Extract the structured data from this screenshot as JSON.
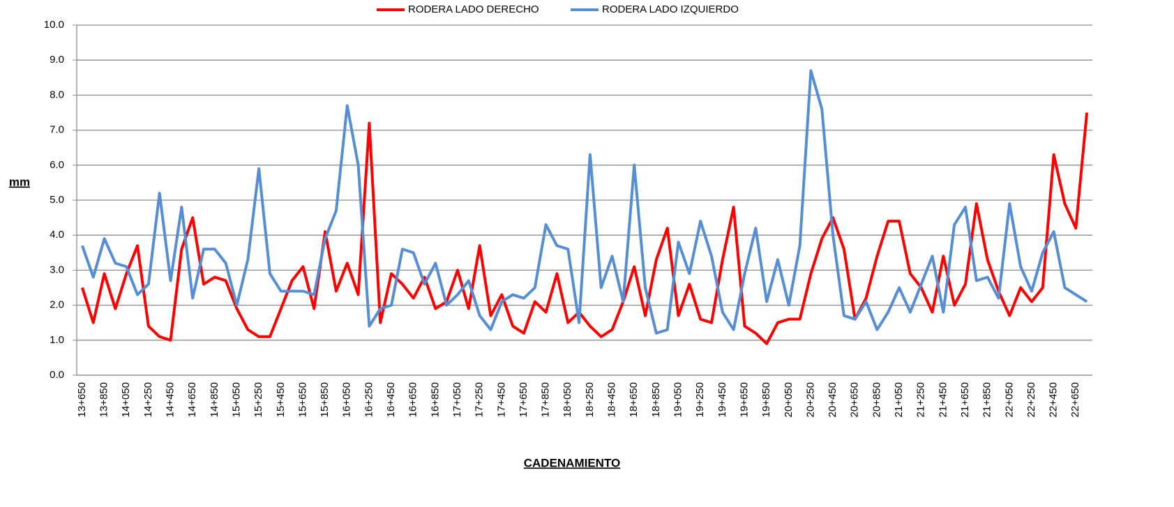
{
  "chart_data": {
    "type": "line",
    "x_label": "CADENAMIENTO",
    "y_label": "mm",
    "categories": [
      "13+650",
      null,
      "13+850",
      null,
      "14+050",
      null,
      "14+250",
      null,
      "14+450",
      null,
      "14+650",
      null,
      "14+850",
      null,
      "15+050",
      null,
      "15+250",
      null,
      "15+450",
      null,
      "15+650",
      null,
      "15+850",
      null,
      "16+050",
      null,
      "16+250",
      null,
      "16+450",
      null,
      "16+650",
      null,
      "16+850",
      null,
      "17+050",
      null,
      "17+250",
      null,
      "17+450",
      null,
      "17+650",
      null,
      "17+850",
      null,
      "18+050",
      null,
      "18+250",
      null,
      "18+450",
      null,
      "18+650",
      null,
      "18+850",
      null,
      "19+050",
      null,
      "19+250",
      null,
      "19+450",
      null,
      "19+650",
      null,
      "19+850",
      null,
      "20+050",
      null,
      "20+250",
      null,
      "20+450",
      null,
      "20+650",
      null,
      "20+850",
      null,
      "21+050",
      null,
      "21+250",
      null,
      "21+450",
      null,
      "21+650",
      null,
      "21+850",
      null,
      "22+050",
      null,
      "22+250",
      null,
      "22+450",
      null,
      "22+650",
      null
    ],
    "series": [
      {
        "name": "RODERA LADO DERECHO",
        "color": "#ff0000",
        "values": [
          2.5,
          1.5,
          2.9,
          1.9,
          2.9,
          3.7,
          1.4,
          1.1,
          1.0,
          3.6,
          4.5,
          2.6,
          2.8,
          2.7,
          1.9,
          1.3,
          1.1,
          1.1,
          1.9,
          2.7,
          3.1,
          1.9,
          4.1,
          2.4,
          3.2,
          2.3,
          7.2,
          1.5,
          2.9,
          2.6,
          2.2,
          2.8,
          1.9,
          2.1,
          3.0,
          1.9,
          3.7,
          1.7,
          2.3,
          1.4,
          1.2,
          2.1,
          1.8,
          2.9,
          1.5,
          1.8,
          1.4,
          1.1,
          1.3,
          2.1,
          3.1,
          1.7,
          3.3,
          4.2,
          1.7,
          2.6,
          1.6,
          1.5,
          3.3,
          4.8,
          1.4,
          1.2,
          0.9,
          1.5,
          1.6,
          1.6,
          2.9,
          3.9,
          4.5,
          3.6,
          1.6,
          2.2,
          3.4,
          4.4,
          4.4,
          2.9,
          2.5,
          1.8,
          3.4,
          2.0,
          2.6,
          4.9,
          3.3,
          2.4,
          1.7,
          2.5,
          2.1,
          2.5,
          6.3,
          4.9,
          4.2,
          7.5
        ]
      },
      {
        "name": "RODERA LADO IZQUIERDO",
        "color": "#558ed5",
        "values": [
          3.7,
          2.8,
          3.9,
          3.2,
          3.1,
          2.3,
          2.6,
          5.2,
          2.7,
          4.8,
          2.2,
          3.6,
          3.6,
          3.2,
          2.0,
          3.3,
          5.9,
          2.9,
          2.4,
          2.4,
          2.4,
          2.3,
          3.9,
          4.7,
          7.7,
          6.0,
          1.4,
          1.9,
          2.0,
          3.6,
          3.5,
          2.6,
          3.2,
          2.0,
          2.3,
          2.7,
          1.7,
          1.3,
          2.1,
          2.3,
          2.2,
          2.5,
          4.3,
          3.7,
          3.6,
          1.5,
          6.3,
          2.5,
          3.4,
          2.1,
          6.0,
          2.5,
          1.2,
          1.3,
          3.8,
          2.9,
          4.4,
          3.4,
          1.8,
          1.3,
          2.9,
          4.2,
          2.1,
          3.3,
          2.0,
          3.7,
          8.7,
          7.6,
          4.0,
          1.7,
          1.6,
          2.1,
          1.3,
          1.8,
          2.5,
          1.8,
          2.6,
          3.4,
          1.8,
          4.3,
          4.8,
          2.7,
          2.8,
          2.2,
          4.9,
          3.1,
          2.4,
          3.5,
          4.1,
          2.5,
          2.3,
          2.1
        ]
      }
    ],
    "ylim": [
      0,
      10
    ],
    "yticks": [
      {
        "value": 0,
        "label": "0.0"
      },
      {
        "value": 1,
        "label": "1.0"
      },
      {
        "value": 2,
        "label": "2.0"
      },
      {
        "value": 3,
        "label": "3.0"
      },
      {
        "value": 4,
        "label": "4.0"
      },
      {
        "value": 5,
        "label": "5.0"
      },
      {
        "value": 6,
        "label": "6.0"
      },
      {
        "value": 7,
        "label": "7.0"
      },
      {
        "value": 8,
        "label": "8.0"
      },
      {
        "value": 9,
        "label": "9.0"
      },
      {
        "value": 10,
        "label": "10.0"
      }
    ],
    "grid": true,
    "legend": "top"
  }
}
